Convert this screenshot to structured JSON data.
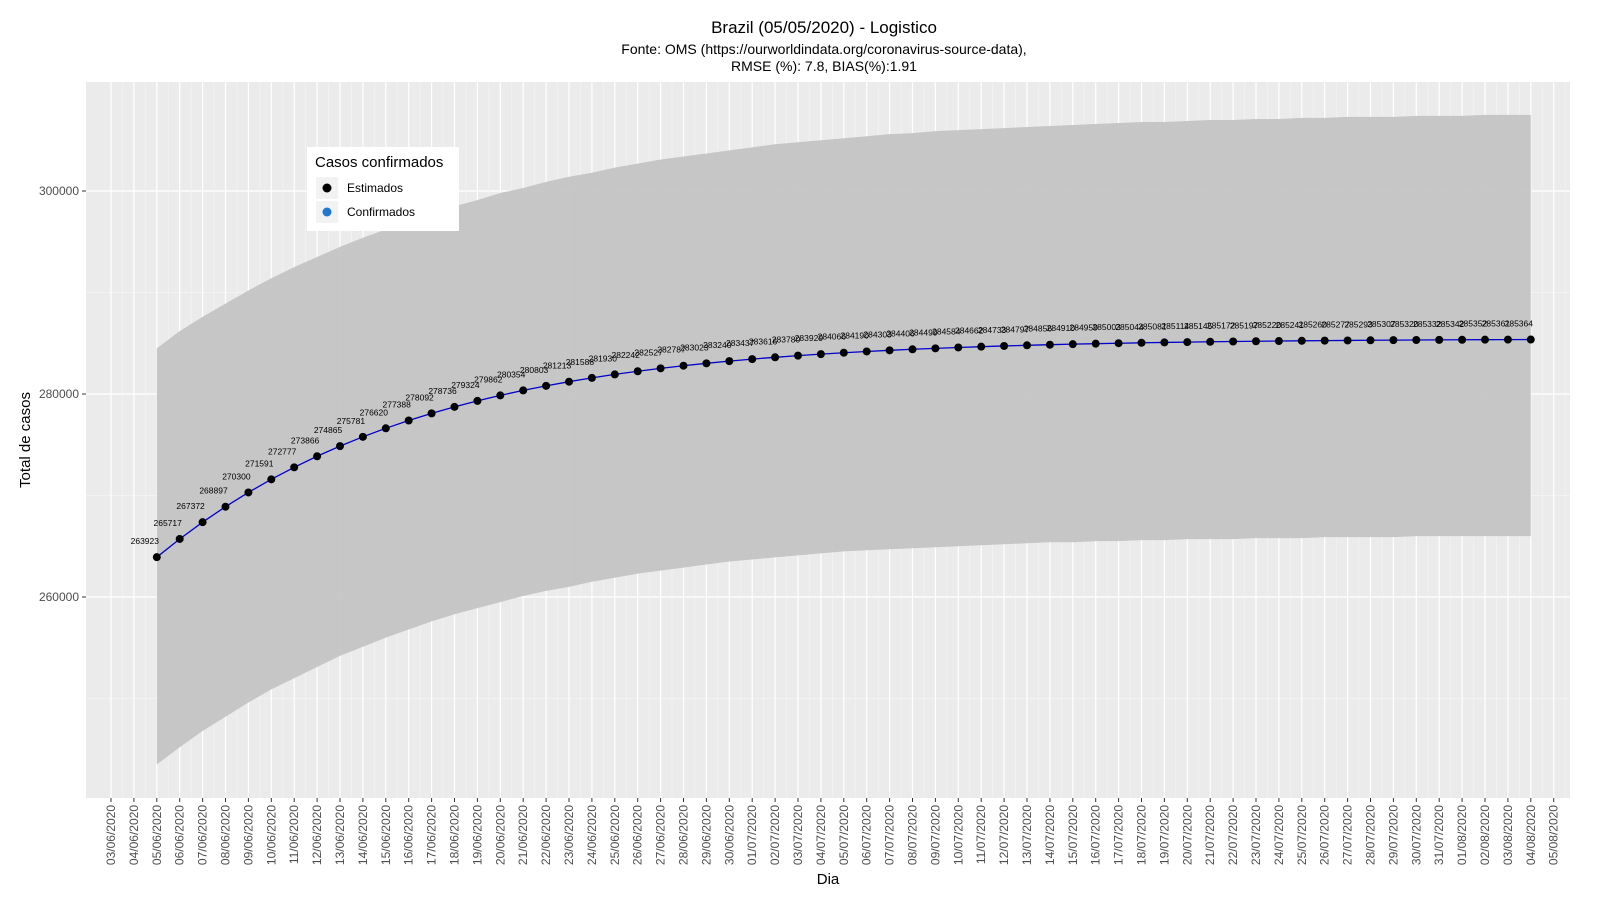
{
  "chart_data": {
    "type": "line",
    "title": "Brazil (05/05/2020) - Logistico",
    "subtitle_line1": "Fonte: OMS (https://ourworldindata.org/coronavirus-source-data),",
    "subtitle_line2": "RMSE (%): 7.8, BIAS(%):1.91",
    "xlabel": "Dia",
    "ylabel": "Total de casos",
    "x_tick_labels": [
      "03/06/2020",
      "04/06/2020",
      "05/06/2020",
      "06/06/2020",
      "07/06/2020",
      "08/06/2020",
      "09/06/2020",
      "10/06/2020",
      "11/06/2020",
      "12/06/2020",
      "13/06/2020",
      "14/06/2020",
      "15/06/2020",
      "16/06/2020",
      "17/06/2020",
      "18/06/2020",
      "19/06/2020",
      "20/06/2020",
      "21/06/2020",
      "22/06/2020",
      "23/06/2020",
      "24/06/2020",
      "25/06/2020",
      "26/06/2020",
      "27/06/2020",
      "28/06/2020",
      "29/06/2020",
      "30/06/2020",
      "01/07/2020",
      "02/07/2020",
      "03/07/2020",
      "04/07/2020",
      "05/07/2020",
      "06/07/2020",
      "07/07/2020",
      "08/07/2020",
      "09/07/2020",
      "10/07/2020",
      "11/07/2020",
      "12/07/2020",
      "13/07/2020",
      "14/07/2020",
      "15/07/2020",
      "16/07/2020",
      "17/07/2020",
      "18/07/2020",
      "19/07/2020",
      "20/07/2020",
      "21/07/2020",
      "22/07/2020",
      "23/07/2020",
      "24/07/2020",
      "25/07/2020",
      "26/07/2020",
      "27/07/2020",
      "28/07/2020",
      "29/07/2020",
      "30/07/2020",
      "31/07/2020",
      "01/08/2020",
      "02/08/2020",
      "03/08/2020",
      "04/08/2020",
      "05/08/2020",
      "06/08/2020"
    ],
    "y_ticks": [
      260000,
      280000,
      300000
    ],
    "y_tick_labels": [
      "260000",
      "280000",
      "300000"
    ],
    "ylim": [
      240000,
      310000
    ],
    "legend": {
      "title": "Casos confirmados",
      "entries": [
        {
          "label": "Estimados",
          "color": "#000000"
        },
        {
          "label": "Confirmados",
          "color": "#1f77d4"
        }
      ],
      "placement": "top-left inside"
    },
    "grid": true,
    "series_color": "#0000cc",
    "point_color": "#000000",
    "ribbon_color": "#c4c4c4",
    "series": [
      {
        "name": "Estimados",
        "x_start": "05/06/2020",
        "x_end": "03/08/2020",
        "values": [
          263923,
          265717,
          267372,
          268897,
          270300,
          271591,
          272777,
          273866,
          274865,
          275781,
          276620,
          277388,
          278092,
          278736,
          279324,
          279862,
          280354,
          280803,
          281213,
          281588,
          281930,
          282242,
          282527,
          282787,
          283023,
          283240,
          283437,
          283616,
          283780,
          283929,
          284066,
          284190,
          284303,
          284406,
          284499,
          284584,
          284662,
          284733,
          284797,
          284856,
          284910,
          284959,
          285003,
          285044,
          285081,
          285114,
          285145,
          285172,
          285197,
          285220,
          285241,
          285260,
          285277,
          285293,
          285307,
          285320,
          285332,
          285342,
          285352,
          285361,
          285364
        ],
        "labels": [
          "263923",
          "265717",
          "267372",
          "268897",
          "270300",
          "271591",
          "272777",
          "273866",
          "274865",
          "275781",
          "276620",
          "277388",
          "278092",
          "278736",
          "279324",
          "279862",
          "280354",
          "280803",
          "281213",
          "281588",
          "281930",
          "282242",
          "282527",
          "282787",
          "283023",
          "283240",
          "283437",
          "283616",
          "283780",
          "283929",
          "284066",
          "284190",
          "284303",
          "284406",
          "284499",
          "284584",
          "284662",
          "284733",
          "284797",
          "284856",
          "284910",
          "284959",
          "285003",
          "285044",
          "285081",
          "285114",
          "285145",
          "285172",
          "285197",
          "285220",
          "285241",
          "285260",
          "285277",
          "285293",
          "285307",
          "285320",
          "285332",
          "285342",
          "285352",
          "285361",
          "285364"
        ],
        "ribbon_upper": [
          284500,
          286200,
          287600,
          288900,
          290200,
          291400,
          292500,
          293500,
          294500,
          295400,
          296200,
          297000,
          297800,
          298500,
          299100,
          299800,
          300300,
          300900,
          301400,
          301800,
          302300,
          302700,
          303100,
          303400,
          303700,
          304000,
          304300,
          304600,
          304800,
          305000,
          305200,
          305400,
          305600,
          305700,
          305900,
          306000,
          306100,
          306200,
          306300,
          306400,
          306500,
          306600,
          306700,
          306800,
          306800,
          306900,
          307000,
          307000,
          307100,
          307100,
          307200,
          307200,
          307300,
          307300,
          307300,
          307400,
          307400,
          307400,
          307500,
          307500,
          307500
        ],
        "ribbon_lower": [
          243500,
          245200,
          246800,
          248200,
          249600,
          250900,
          252000,
          253100,
          254200,
          255100,
          256000,
          256800,
          257600,
          258300,
          258900,
          259500,
          260100,
          260600,
          261000,
          261500,
          261900,
          262300,
          262600,
          262900,
          263200,
          263500,
          263700,
          263900,
          264100,
          264300,
          264500,
          264600,
          264700,
          264800,
          264900,
          265000,
          265100,
          265200,
          265300,
          265400,
          265400,
          265500,
          265500,
          265600,
          265600,
          265700,
          265700,
          265700,
          265800,
          265800,
          265800,
          265900,
          265900,
          265900,
          265900,
          266000,
          266000,
          266000,
          266000,
          266000,
          266000
        ]
      }
    ]
  }
}
